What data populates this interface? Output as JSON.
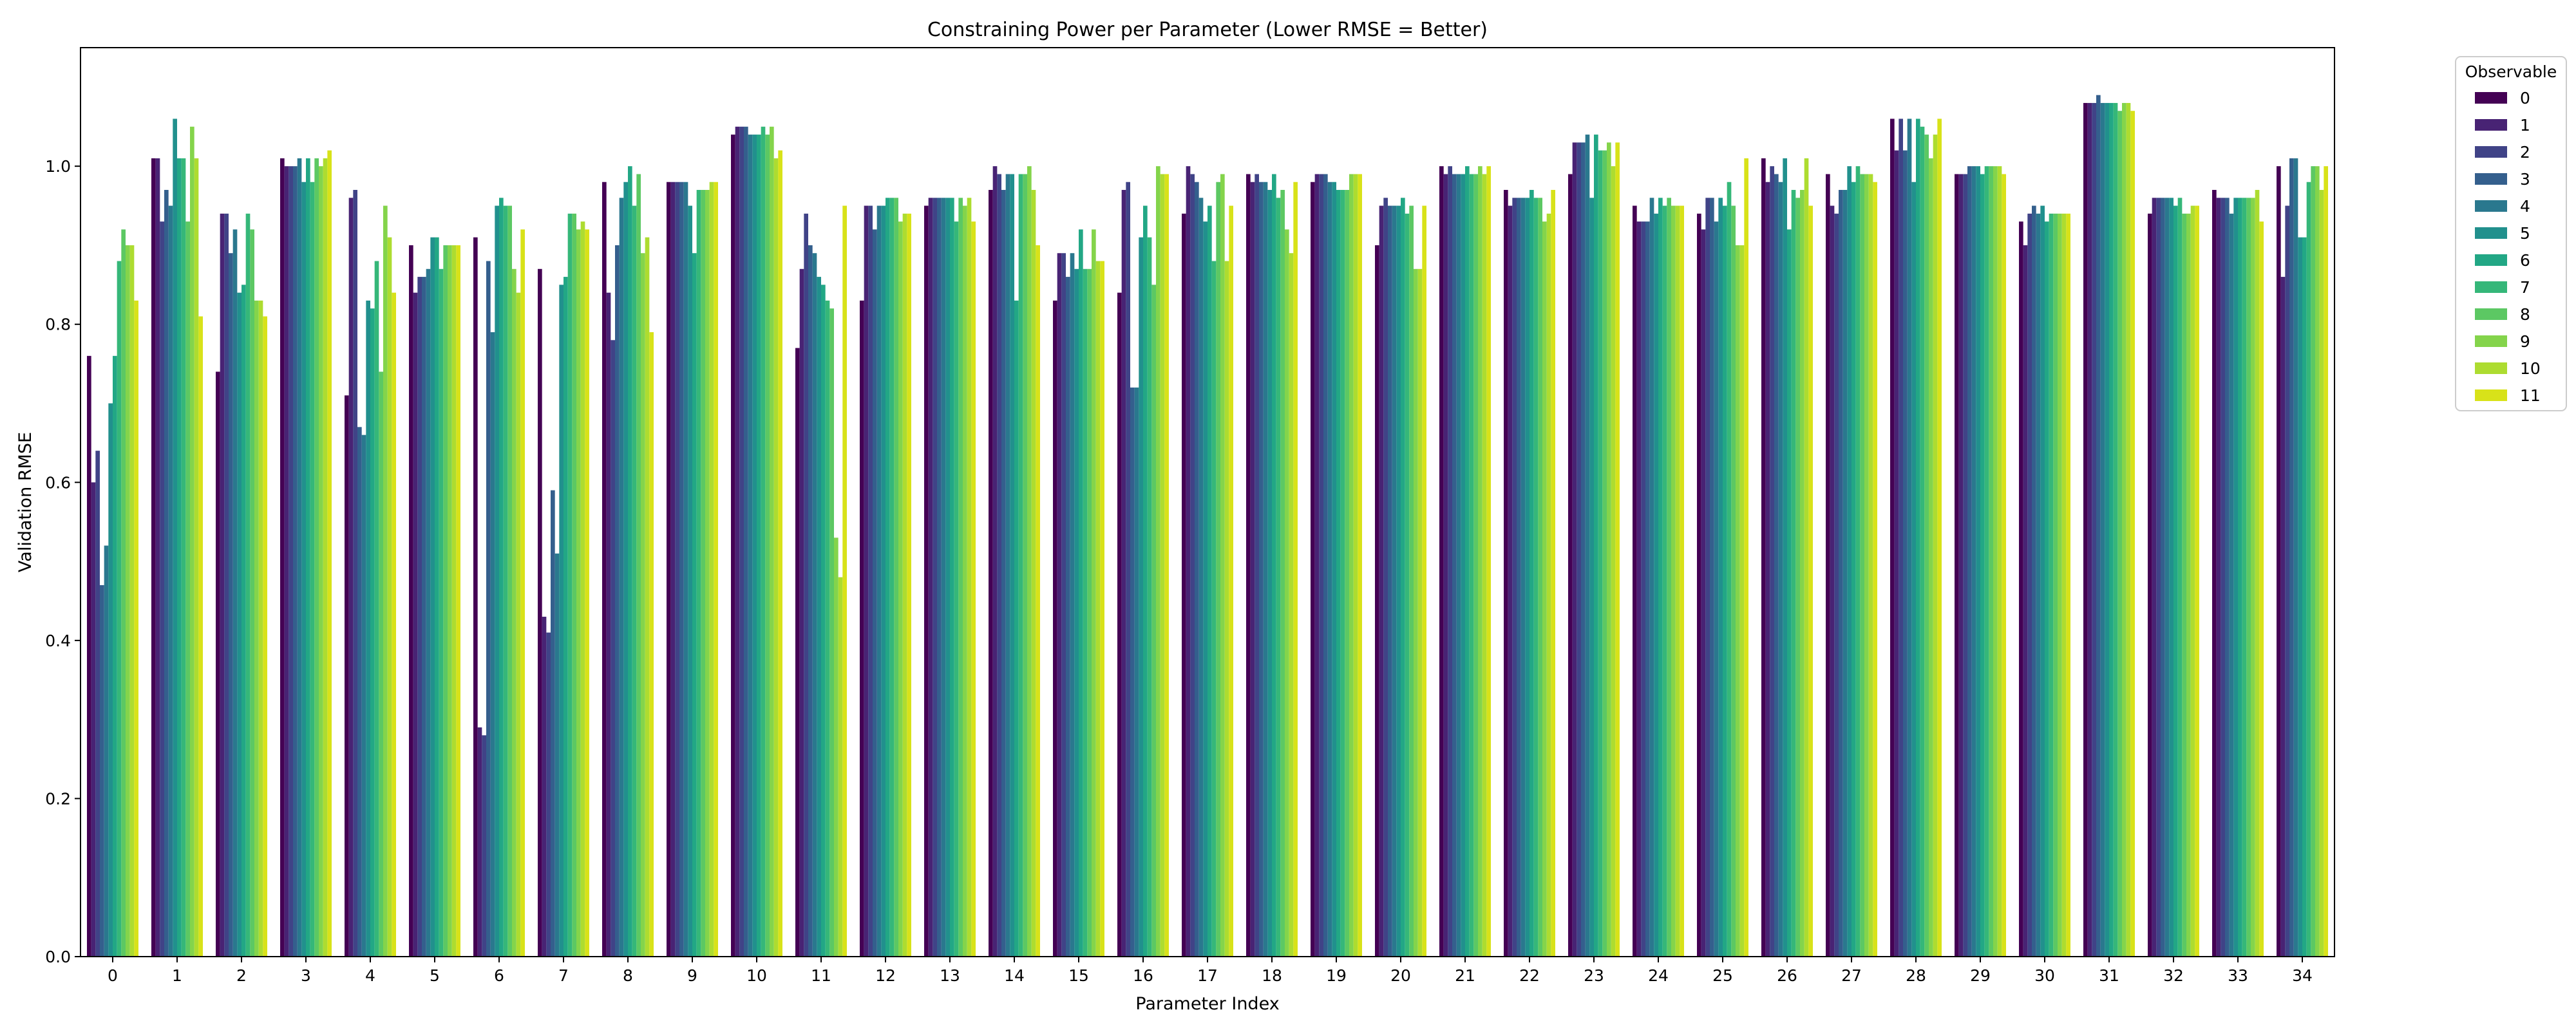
{
  "chart_data": {
    "type": "bar",
    "title": "Constraining Power per Parameter (Lower RMSE = Better)",
    "xlabel": "Parameter Index",
    "ylabel": "Validation RMSE",
    "ylim": [
      0,
      1.15
    ],
    "yticks": [
      "0.0",
      "0.2",
      "0.4",
      "0.6",
      "0.8",
      "1.0"
    ],
    "grid": false,
    "legend": {
      "title": "Observable",
      "placement": "outside-top-right"
    },
    "categories": [
      "0",
      "1",
      "2",
      "3",
      "4",
      "5",
      "6",
      "7",
      "8",
      "9",
      "10",
      "11",
      "12",
      "13",
      "14",
      "15",
      "16",
      "17",
      "18",
      "19",
      "20",
      "21",
      "22",
      "23",
      "24",
      "25",
      "26",
      "27",
      "28",
      "29",
      "30",
      "31",
      "32",
      "33",
      "34"
    ],
    "series": [
      {
        "name": "0",
        "color": "#440154",
        "values": [
          0.76,
          1.01,
          0.74,
          1.01,
          0.71,
          0.9,
          0.91,
          0.87,
          0.98,
          0.98,
          1.04,
          0.77,
          0.83,
          0.95,
          0.97,
          0.83,
          0.84,
          0.94,
          0.99,
          0.98,
          0.9,
          1.0,
          0.97,
          0.99,
          0.95,
          0.94,
          1.01,
          0.99,
          1.06,
          0.99,
          0.93,
          1.08,
          0.94,
          0.97,
          1.0
        ]
      },
      {
        "name": "1",
        "color": "#482374",
        "values": [
          0.6,
          1.01,
          0.94,
          1.0,
          0.96,
          0.84,
          0.29,
          0.43,
          0.84,
          0.98,
          1.05,
          0.87,
          0.95,
          0.96,
          1.0,
          0.89,
          0.97,
          1.0,
          0.98,
          0.99,
          0.95,
          0.99,
          0.95,
          1.03,
          0.93,
          0.92,
          0.98,
          0.95,
          1.02,
          0.99,
          0.9,
          1.08,
          0.96,
          0.96,
          0.86
        ]
      },
      {
        "name": "2",
        "color": "#404387",
        "values": [
          0.64,
          0.93,
          0.94,
          1.0,
          0.97,
          0.86,
          0.28,
          0.41,
          0.78,
          0.98,
          1.05,
          0.94,
          0.95,
          0.96,
          0.99,
          0.89,
          0.98,
          0.99,
          0.99,
          0.99,
          0.96,
          1.0,
          0.96,
          1.03,
          0.93,
          0.96,
          1.0,
          0.94,
          1.06,
          0.99,
          0.94,
          1.08,
          0.96,
          0.96,
          0.95
        ]
      },
      {
        "name": "3",
        "color": "#345f8d",
        "values": [
          0.47,
          0.97,
          0.89,
          1.0,
          0.67,
          0.86,
          0.88,
          0.59,
          0.9,
          0.98,
          1.05,
          0.9,
          0.92,
          0.96,
          0.97,
          0.86,
          0.72,
          0.98,
          0.98,
          0.99,
          0.95,
          0.99,
          0.96,
          1.03,
          0.93,
          0.96,
          0.99,
          0.97,
          1.02,
          1.0,
          0.95,
          1.09,
          0.96,
          0.96,
          1.01
        ]
      },
      {
        "name": "4",
        "color": "#2a788e",
        "values": [
          0.52,
          0.95,
          0.92,
          1.01,
          0.66,
          0.87,
          0.79,
          0.51,
          0.96,
          0.98,
          1.04,
          0.89,
          0.95,
          0.96,
          0.99,
          0.89,
          0.72,
          0.96,
          0.98,
          0.98,
          0.95,
          0.99,
          0.96,
          1.04,
          0.96,
          0.93,
          0.98,
          0.97,
          1.06,
          1.0,
          0.94,
          1.08,
          0.96,
          0.94,
          1.01
        ]
      },
      {
        "name": "5",
        "color": "#21908d",
        "values": [
          0.7,
          1.06,
          0.84,
          0.98,
          0.83,
          0.91,
          0.95,
          0.85,
          0.98,
          0.95,
          1.04,
          0.86,
          0.95,
          0.96,
          0.99,
          0.87,
          0.91,
          0.93,
          0.97,
          0.98,
          0.95,
          0.99,
          0.96,
          0.96,
          0.94,
          0.96,
          1.01,
          1.0,
          0.98,
          1.0,
          0.95,
          1.08,
          0.96,
          0.96,
          0.91
        ]
      },
      {
        "name": "6",
        "color": "#22a785",
        "values": [
          0.76,
          1.01,
          0.85,
          1.01,
          0.82,
          0.91,
          0.96,
          0.86,
          1.0,
          0.89,
          1.04,
          0.85,
          0.96,
          0.96,
          0.83,
          0.92,
          0.95,
          0.95,
          0.99,
          0.97,
          0.96,
          1.0,
          0.97,
          1.04,
          0.96,
          0.95,
          0.92,
          0.98,
          1.06,
          0.99,
          0.93,
          1.08,
          0.95,
          0.96,
          0.91
        ]
      },
      {
        "name": "7",
        "color": "#35b779",
        "values": [
          0.88,
          1.01,
          0.94,
          0.98,
          0.88,
          0.87,
          0.95,
          0.94,
          0.95,
          0.97,
          1.05,
          0.83,
          0.96,
          0.93,
          0.99,
          0.87,
          0.91,
          0.88,
          0.96,
          0.97,
          0.94,
          0.99,
          0.96,
          1.02,
          0.95,
          0.98,
          0.97,
          1.0,
          1.05,
          1.0,
          0.94,
          1.08,
          0.96,
          0.96,
          0.98
        ]
      },
      {
        "name": "8",
        "color": "#5cc863",
        "values": [
          0.92,
          0.93,
          0.92,
          1.01,
          0.74,
          0.9,
          0.95,
          0.94,
          0.99,
          0.97,
          1.04,
          0.82,
          0.96,
          0.96,
          0.99,
          0.87,
          0.85,
          0.98,
          0.97,
          0.97,
          0.95,
          0.99,
          0.96,
          1.02,
          0.96,
          0.95,
          0.96,
          0.99,
          1.04,
          1.0,
          0.94,
          1.07,
          0.94,
          0.96,
          1.0
        ]
      },
      {
        "name": "9",
        "color": "#84d44b",
        "values": [
          0.9,
          1.05,
          0.83,
          1.0,
          0.95,
          0.9,
          0.87,
          0.92,
          0.89,
          0.97,
          1.05,
          0.53,
          0.93,
          0.95,
          1.0,
          0.92,
          1.0,
          0.99,
          0.92,
          0.99,
          0.87,
          1.0,
          0.93,
          1.03,
          0.95,
          0.9,
          0.97,
          0.99,
          1.01,
          1.0,
          0.94,
          1.08,
          0.94,
          0.96,
          1.0
        ]
      },
      {
        "name": "10",
        "color": "#addc30",
        "values": [
          0.9,
          1.01,
          0.83,
          1.01,
          0.91,
          0.9,
          0.84,
          0.93,
          0.91,
          0.98,
          1.01,
          0.48,
          0.94,
          0.96,
          0.97,
          0.88,
          0.99,
          0.88,
          0.89,
          0.99,
          0.87,
          0.99,
          0.94,
          1.0,
          0.95,
          0.9,
          1.01,
          0.99,
          1.04,
          1.0,
          0.94,
          1.08,
          0.95,
          0.97,
          0.97
        ]
      },
      {
        "name": "11",
        "color": "#d8e219",
        "values": [
          0.83,
          0.81,
          0.81,
          1.02,
          0.84,
          0.9,
          0.92,
          0.92,
          0.79,
          0.98,
          1.02,
          0.95,
          0.94,
          0.93,
          0.9,
          0.88,
          0.99,
          0.95,
          0.98,
          0.99,
          0.95,
          1.0,
          0.97,
          1.03,
          0.95,
          1.01,
          0.95,
          0.98,
          1.06,
          0.99,
          0.94,
          1.07,
          0.95,
          0.93,
          1.0
        ]
      }
    ]
  }
}
